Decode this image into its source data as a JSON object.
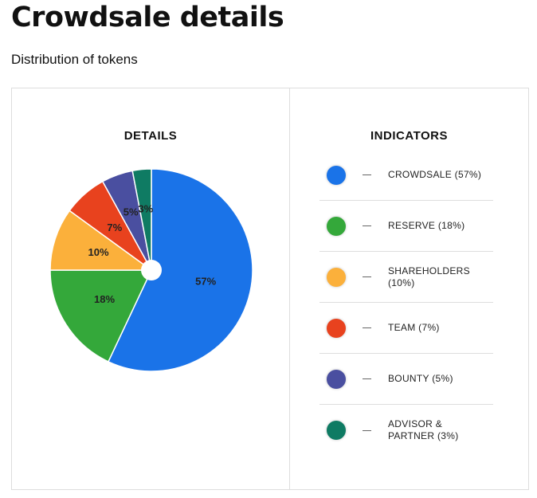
{
  "header": {
    "title": "Crowdsale details",
    "subtitle": "Distribution of tokens"
  },
  "chart_data": {
    "type": "pie",
    "title": "DETAILS",
    "legend_title": "INDICATORS",
    "categories": [
      "CROWDSALE (57%)",
      "RESERVE (18%)",
      "SHAREHOLDERS (10%)",
      "TEAM (7%)",
      "BOUNTY (5%)",
      "ADVISOR & PARTNER (3%)"
    ],
    "values": [
      57,
      18,
      10,
      7,
      5,
      3
    ],
    "value_labels": [
      "57%",
      "18%",
      "10%",
      "7%",
      "5%",
      "3%"
    ],
    "colors": [
      "#1a73e8",
      "#34a83a",
      "#fbb03b",
      "#e8421e",
      "#4a4fa0",
      "#0f7b63"
    ]
  }
}
